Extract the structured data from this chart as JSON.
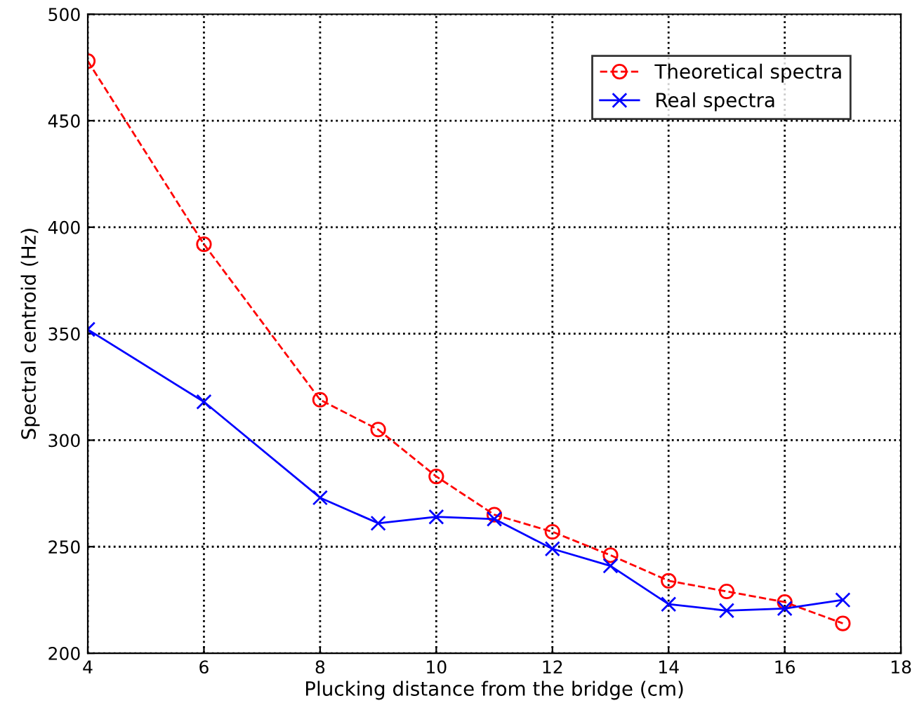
{
  "chart_data": {
    "type": "line",
    "xlabel": "Plucking distance from the bridge (cm)",
    "ylabel": "Spectral centroid (Hz)",
    "xlim": [
      4,
      18
    ],
    "xticks": [
      4,
      6,
      8,
      10,
      12,
      14,
      16,
      18
    ],
    "ylim": [
      200,
      500
    ],
    "yticks": [
      200,
      250,
      300,
      350,
      400,
      450,
      500
    ],
    "grid": true,
    "legend": "top right",
    "series": [
      {
        "name": "Theoretical spectra",
        "color": "#ff0000",
        "marker": "circle",
        "line_style": "dashed",
        "x": [
          4,
          6,
          8,
          9,
          10,
          11,
          12,
          13,
          14,
          15,
          16,
          17
        ],
        "values": [
          478,
          392,
          319,
          305,
          283,
          265,
          257,
          246,
          234,
          229,
          224,
          214
        ]
      },
      {
        "name": "Real spectra",
        "color": "#0000ff",
        "marker": "cross",
        "line_style": "solid",
        "x": [
          4,
          6,
          8,
          9,
          10,
          11,
          12,
          13,
          14,
          15,
          16,
          17
        ],
        "values": [
          352,
          318,
          273,
          261,
          264,
          263,
          249,
          241,
          223,
          220,
          221,
          225
        ]
      }
    ]
  }
}
